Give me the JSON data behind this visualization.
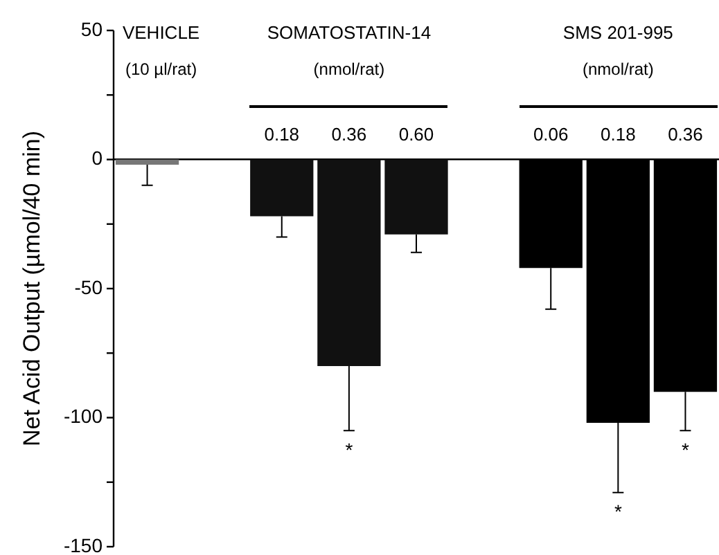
{
  "chart_data": {
    "type": "bar",
    "ylabel": "Net Acid Output (µmol/40 min)",
    "categories": [
      null,
      null,
      "0.18",
      "0.36",
      "0.60",
      null,
      "0.06",
      "0.18",
      "0.36"
    ],
    "values": [
      -2,
      null,
      -22,
      -80,
      -29,
      null,
      -42,
      -102,
      -90
    ],
    "errors": [
      [
        -10,
        -2
      ],
      null,
      [
        -30,
        -22
      ],
      [
        -105,
        -80
      ],
      [
        -36,
        -29
      ],
      null,
      [
        -58,
        -42
      ],
      [
        -129,
        -102
      ],
      [
        -105,
        -90
      ]
    ],
    "colors": [
      "#777777",
      null,
      "#111111",
      "#111111",
      "#111111",
      null,
      "#000000",
      "#000000",
      "#000000"
    ],
    "ylim": [
      -150,
      50
    ],
    "yticks": [
      -150,
      {
        "value": -125,
        "label": null
      },
      -100,
      {
        "value": -75,
        "label": null
      },
      -50,
      {
        "value": -25,
        "label": null
      },
      0,
      {
        "value": 25,
        "label": null
      },
      50
    ],
    "annotations": [
      "VEHICLE",
      "(10 µl/rat)",
      "SOMATOSTATIN-14",
      "(nmol/rat)",
      "SMS 201-995",
      "(nmol/rat)",
      "*",
      "*",
      "*"
    ],
    "grid": false,
    "legend": false
  }
}
